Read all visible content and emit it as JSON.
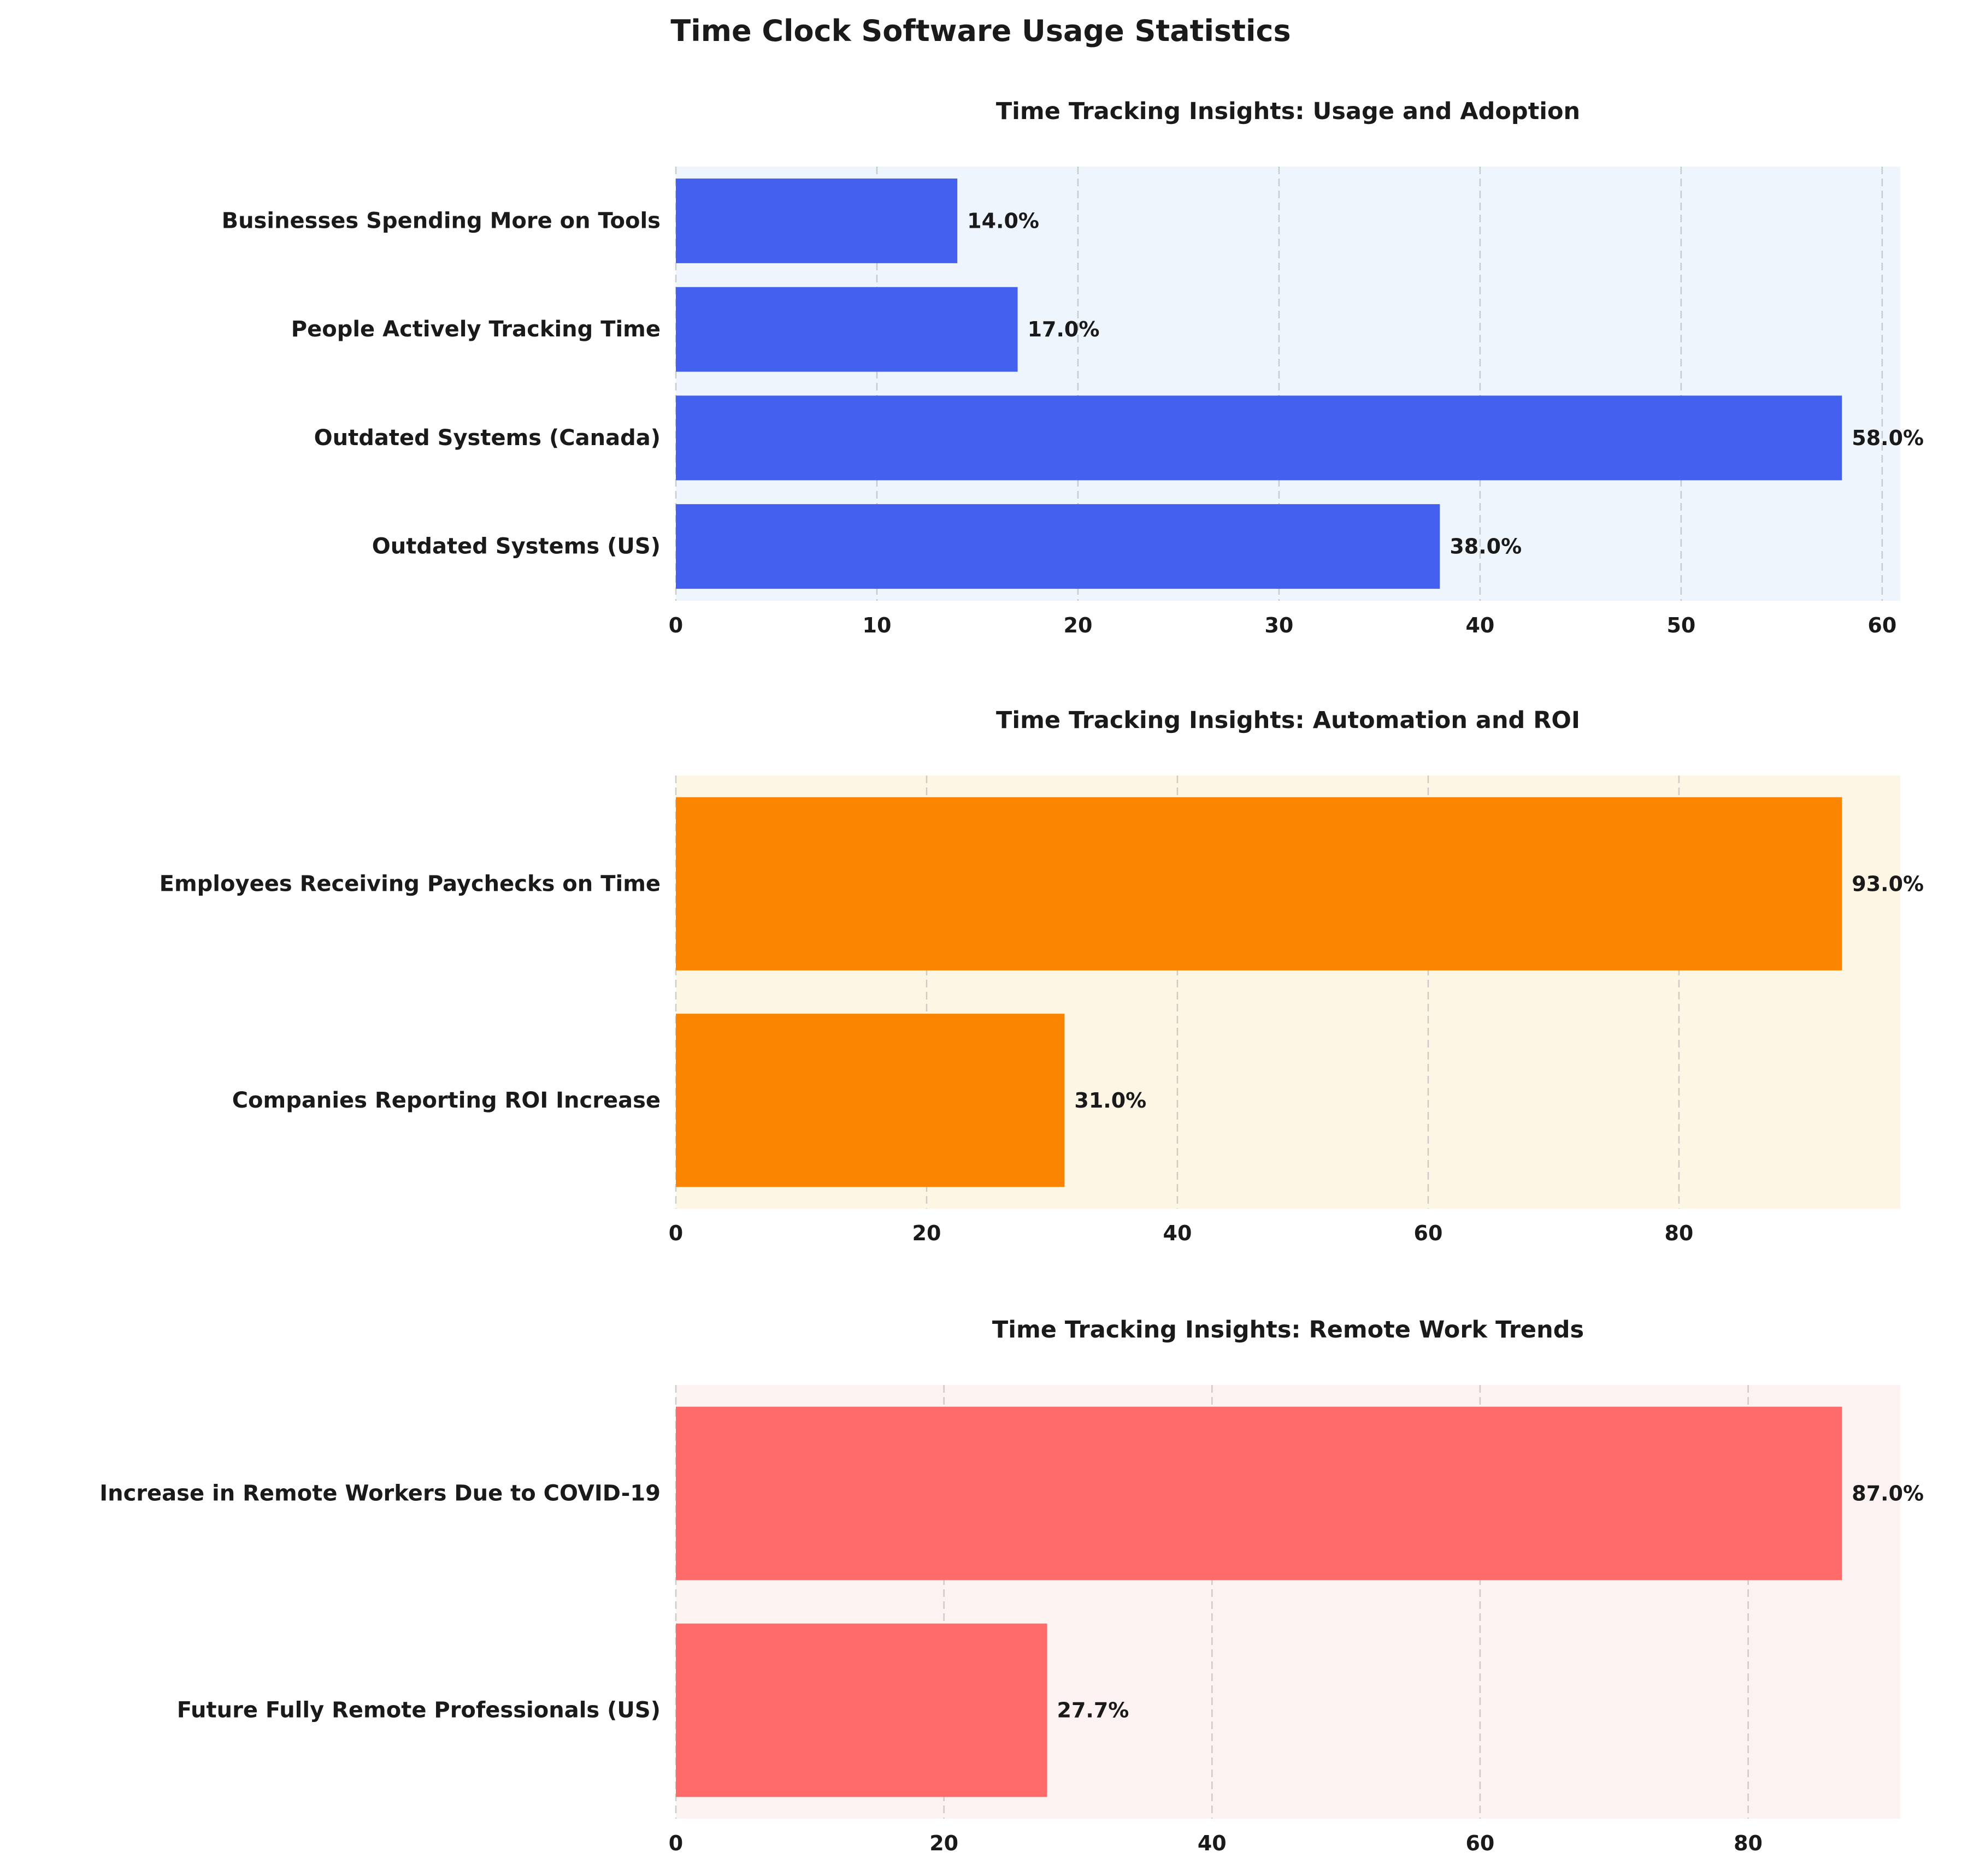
{
  "figure_title": "Time Clock Software Usage Statistics",
  "chart_data": [
    {
      "type": "bar",
      "orientation": "horizontal",
      "title": "Time Tracking Insights: Usage and Adoption",
      "categories": [
        "Businesses Spending More on Tools",
        "People Actively Tracking Time",
        "Outdated Systems (Canada)",
        "Outdated Systems (US)"
      ],
      "values": [
        14.0,
        17.0,
        58.0,
        38.0
      ],
      "value_labels": [
        "14.0%",
        "17.0%",
        "58.0%",
        "38.0%"
      ],
      "xticks": [
        0,
        10,
        20,
        30,
        40,
        50,
        60
      ],
      "xlim": [
        0,
        60.9
      ],
      "bar_color": "#4361ee",
      "background_color": "#eef5fd",
      "grid": true
    },
    {
      "type": "bar",
      "orientation": "horizontal",
      "title": "Time Tracking Insights: Automation and ROI",
      "categories": [
        "Employees Receiving Paychecks on Time",
        "Companies Reporting ROI Increase"
      ],
      "values": [
        93.0,
        31.0
      ],
      "value_labels": [
        "93.0%",
        "31.0%"
      ],
      "xticks": [
        0,
        20,
        40,
        60,
        80
      ],
      "xlim": [
        0,
        97.65
      ],
      "bar_color": "#fb8500",
      "background_color": "#fdf6e4",
      "grid": true
    },
    {
      "type": "bar",
      "orientation": "horizontal",
      "title": "Time Tracking Insights: Remote Work Trends",
      "categories": [
        "Increase in Remote Workers Due to COVID-19",
        "Future Fully Remote Professionals (US)"
      ],
      "values": [
        87.0,
        27.7
      ],
      "value_labels": [
        "87.0%",
        "27.7%"
      ],
      "xticks": [
        0,
        20,
        40,
        60,
        80
      ],
      "xlim": [
        0,
        91.35
      ],
      "bar_color": "#ff6b6b",
      "background_color": "#fdf2f2",
      "grid": true
    }
  ]
}
